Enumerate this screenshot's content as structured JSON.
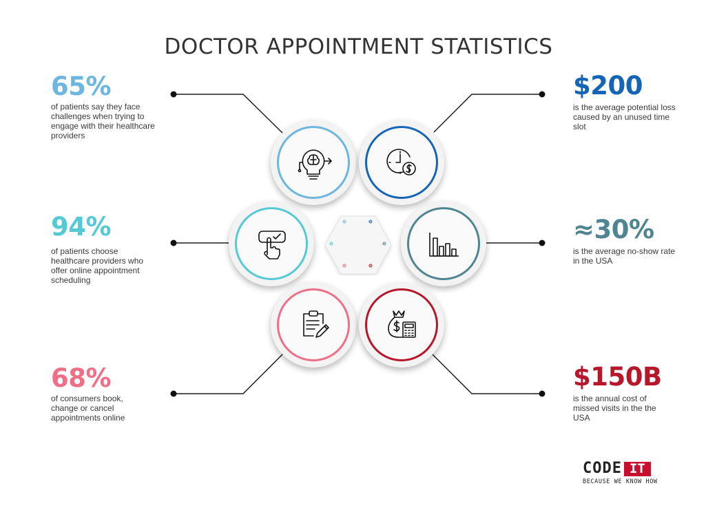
{
  "title": "DOCTOR APPOINTMENT STATISTICS",
  "stats": {
    "challenges": {
      "value": "65%",
      "description": "of patients say they face challenges when trying to engage with their healthcare providers",
      "color": "#6cb6e0"
    },
    "online_providers": {
      "value": "94%",
      "description": "of patients choose healthcare providers who offer online appointment scheduling",
      "color": "#55c9d4"
    },
    "book_online": {
      "value": "68%",
      "description": "of consumers book, change or cancel appointments online",
      "color": "#ee6f86"
    },
    "unused_slot": {
      "value": "$200",
      "description": "is the average potential loss caused by an unused time slot",
      "color": "#1565b7"
    },
    "no_show": {
      "value": "≈30%",
      "description": "is the average no-show rate in the USA",
      "color": "#4f8590"
    },
    "missed_visits": {
      "value": "$150B",
      "description": "is the annual cost of missed visits in the the USA",
      "color": "#b8162a"
    }
  },
  "icons": {
    "challenges": "lightbulb-brain-icon",
    "unused_slot": "clock-dollar-icon",
    "online_providers": "hand-checkbox-icon",
    "no_show": "bar-chart-icon",
    "book_online": "clipboard-pencil-icon",
    "missed_visits": "money-bag-calculator-icon"
  },
  "logo": {
    "brand": "CODE",
    "badge": "IT",
    "tagline": "BECAUSE WE KNOW HOW"
  }
}
